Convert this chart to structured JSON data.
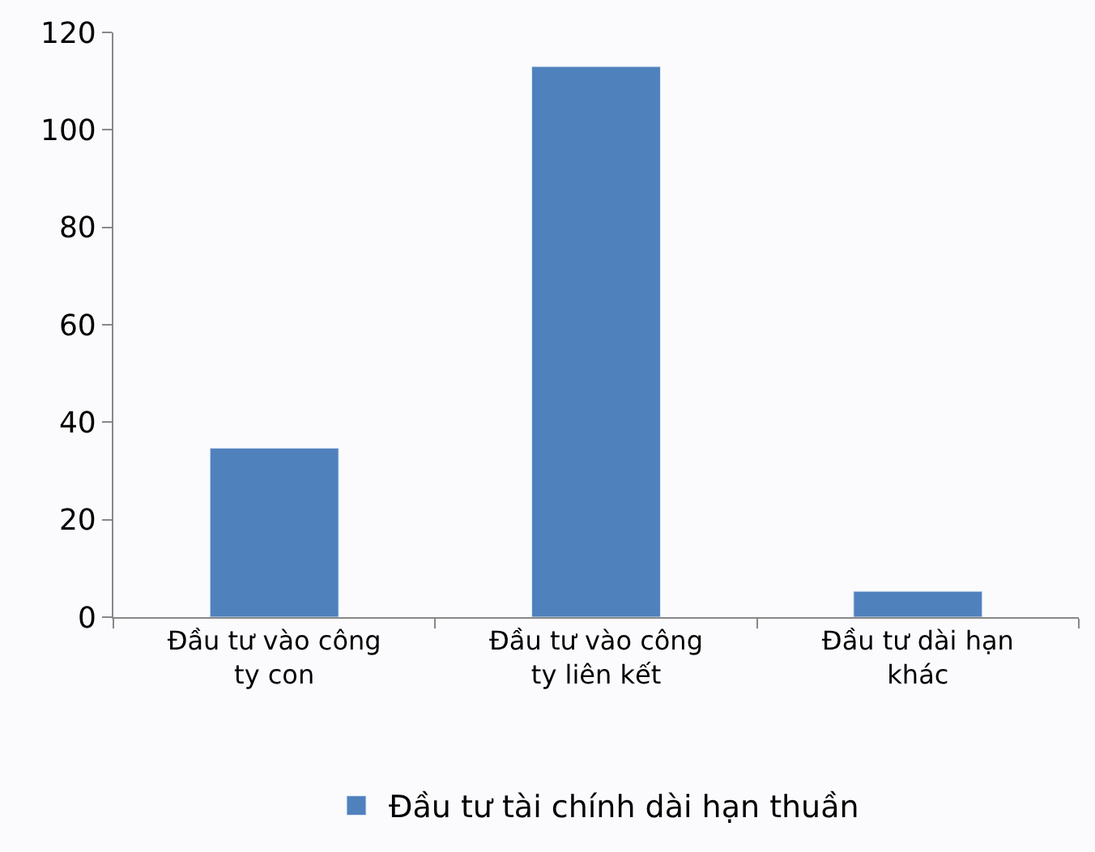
{
  "chart_data": {
    "type": "bar",
    "categories": [
      "Đầu tư vào công ty con",
      "Đầu tư vào công ty liên kết",
      "Đầu tư dài hạn khác"
    ],
    "series": [
      {
        "name": "Đầu tư tài chính dài hạn thuần",
        "color": "#4f81bd",
        "values": [
          34.7,
          113,
          5.3
        ]
      }
    ],
    "ylim": [
      0,
      120
    ],
    "yticks": [
      0,
      20,
      40,
      60,
      80,
      100,
      120
    ],
    "legend": "bottom"
  }
}
